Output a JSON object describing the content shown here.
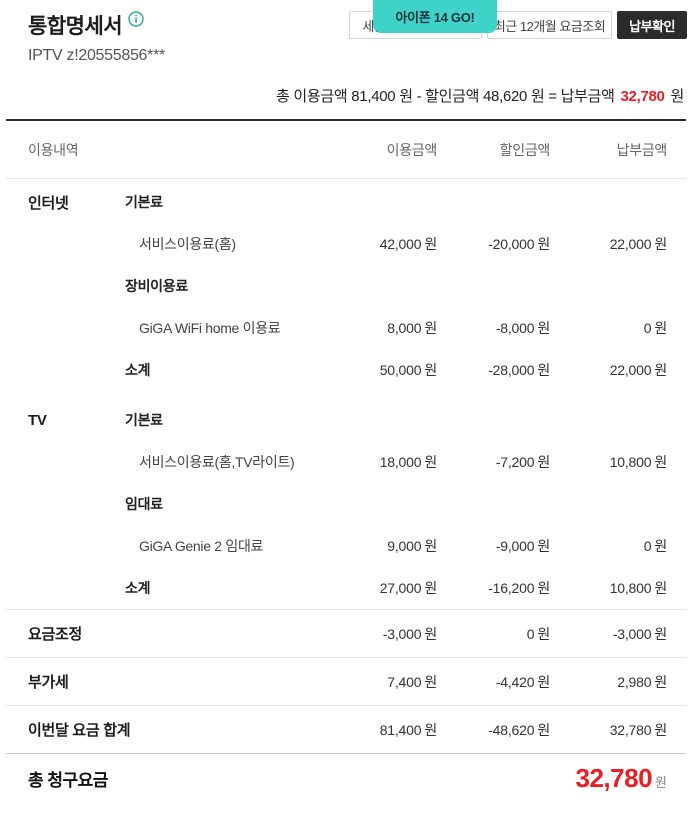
{
  "header": {
    "title": "통합명세서",
    "subtitle": "IPTV z!20555856***",
    "buttons": [
      {
        "label": "세금계산서 발행내역",
        "style": "outline"
      },
      {
        "label": "최근 12개월 요금조회",
        "style": "outline"
      },
      {
        "label": "납부확인",
        "style": "dark"
      }
    ],
    "promo_tooltip": "아이폰 14 GO!"
  },
  "summary": {
    "prefix": "총 이용금액 81,400 원 - 할인금액 48,620 원 = 납부금액",
    "amount": "32,780",
    "suffix": "원"
  },
  "table": {
    "headers": [
      "이용내역",
      "이용금액",
      "할인금액",
      "납부금액"
    ],
    "unit": "원",
    "rows": [
      {
        "type": "group",
        "cat": "인터넷",
        "label": "기본료"
      },
      {
        "type": "item",
        "label": "서비스이용료(홈)",
        "usage": "42,000",
        "discount": "-20,000",
        "pay": "22,000"
      },
      {
        "type": "group",
        "label": "장비이용료"
      },
      {
        "type": "item",
        "label": "GiGA WiFi home 이용료",
        "usage": "8,000",
        "discount": "-8,000",
        "pay": "0"
      },
      {
        "type": "subtotal",
        "label": "소계",
        "usage": "50,000",
        "discount": "-28,000",
        "pay": "22,000"
      },
      {
        "type": "group",
        "cat": "TV",
        "label": "기본료",
        "section_gap": true
      },
      {
        "type": "item",
        "label": "서비스이용료(홈,TV라이트)",
        "usage": "18,000",
        "discount": "-7,200",
        "pay": "10,800"
      },
      {
        "type": "group",
        "label": "임대료"
      },
      {
        "type": "item",
        "label": "GiGA Genie 2 임대료",
        "usage": "9,000",
        "discount": "-9,000",
        "pay": "0"
      },
      {
        "type": "subtotal",
        "label": "소계",
        "usage": "27,000",
        "discount": "-16,200",
        "pay": "10,800"
      },
      {
        "type": "simple",
        "label": "요금조정",
        "usage": "-3,000",
        "discount": "0",
        "pay": "-3,000"
      },
      {
        "type": "simple",
        "label": "부가세",
        "usage": "7,400",
        "discount": "-4,420",
        "pay": "2,980"
      },
      {
        "type": "simple",
        "label": "이번달 요금 합계",
        "usage": "81,400",
        "discount": "-48,620",
        "pay": "32,780"
      }
    ]
  },
  "total": {
    "label": "총 청구요금",
    "amount": "32,780",
    "unit": "원"
  },
  "colors": {
    "accent_red": "#ee1c23",
    "promo_teal": "#3ed2c8",
    "info_teal": "#28a89a",
    "button_dark": "#2b2b2b"
  }
}
